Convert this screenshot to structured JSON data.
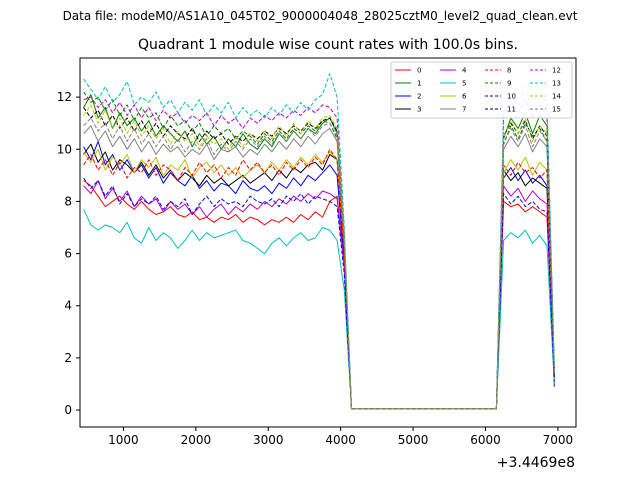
{
  "chart_data": {
    "type": "line",
    "suptitle": "Data file: modeM0/AS1A10_045T02_9000004048_28025cztM0_level2_quad_clean.evt",
    "title": "Quadrant 1 module wise count rates with 100.0s bins.",
    "xlabel": "",
    "ylabel": "",
    "x_offset_label": "+3.4469e8",
    "xlim": [
      400,
      7250
    ],
    "ylim": [
      -0.65,
      13.5
    ],
    "xticks": [
      1000,
      2000,
      3000,
      4000,
      5000,
      6000,
      7000
    ],
    "xtick_labels": [
      "1000",
      "2000",
      "3000",
      "4000",
      "5000",
      "6000",
      "7000"
    ],
    "yticks": [
      0,
      2,
      4,
      6,
      8,
      10,
      12
    ],
    "ytick_labels": [
      "0",
      "2",
      "4",
      "6",
      "8",
      "10",
      "12"
    ],
    "legend_position": "upper-right",
    "legend_columns": 4,
    "x": [
      450,
      550,
      650,
      750,
      850,
      950,
      1050,
      1150,
      1250,
      1350,
      1450,
      1550,
      1650,
      1750,
      1850,
      1950,
      2050,
      2150,
      2250,
      2350,
      2450,
      2550,
      2650,
      2750,
      2850,
      2950,
      3050,
      3150,
      3250,
      3350,
      3450,
      3550,
      3650,
      3750,
      3850,
      3950,
      4050,
      4150,
      6150,
      6250,
      6350,
      6450,
      6550,
      6650,
      6750,
      6850,
      6950
    ],
    "series": [
      {
        "name": "0",
        "color": "#ff0000",
        "dash": "solid",
        "values": [
          8.8,
          8.6,
          8.2,
          7.8,
          8.0,
          8.2,
          7.9,
          7.7,
          8.0,
          7.7,
          7.5,
          7.6,
          7.8,
          7.5,
          7.4,
          7.6,
          7.3,
          7.4,
          7.2,
          7.4,
          7.3,
          7.5,
          7.2,
          7.4,
          7.3,
          7.1,
          7.3,
          7.2,
          7.4,
          7.2,
          7.5,
          7.3,
          7.6,
          7.4,
          8.0,
          8.2,
          5.6,
          0.05,
          0.05,
          8.0,
          7.8,
          7.9,
          7.6,
          7.8,
          7.6,
          7.4,
          1.3
        ]
      },
      {
        "name": "1",
        "color": "#008000",
        "dash": "solid",
        "values": [
          11.6,
          12.1,
          11.2,
          11.6,
          10.8,
          11.4,
          10.9,
          11.2,
          10.7,
          11.1,
          10.5,
          10.9,
          10.6,
          10.3,
          10.7,
          10.1,
          10.6,
          10.2,
          10.5,
          10.0,
          10.4,
          10.1,
          10.6,
          10.2,
          10.0,
          10.4,
          10.1,
          10.6,
          10.3,
          10.7,
          10.4,
          10.8,
          10.6,
          11.0,
          11.2,
          10.6,
          6.4,
          0.05,
          0.05,
          10.4,
          11.2,
          10.8,
          11.4,
          10.6,
          11.3,
          10.9,
          1.6
        ]
      },
      {
        "name": "2",
        "color": "#0000ff",
        "dash": "solid",
        "values": [
          10.1,
          9.6,
          10.3,
          9.4,
          9.8,
          9.2,
          9.6,
          9.1,
          9.4,
          8.9,
          9.3,
          8.7,
          9.1,
          8.8,
          8.6,
          9.0,
          8.5,
          8.8,
          8.4,
          8.7,
          8.6,
          8.3,
          8.8,
          8.5,
          8.4,
          8.6,
          8.3,
          8.7,
          8.5,
          8.9,
          8.6,
          9.0,
          8.8,
          9.1,
          9.4,
          9.0,
          5.7,
          0.05,
          0.05,
          8.9,
          9.3,
          8.8,
          9.2,
          8.7,
          9.0,
          8.6,
          0.9
        ]
      },
      {
        "name": "3",
        "color": "#000000",
        "dash": "solid",
        "values": [
          9.8,
          10.2,
          9.5,
          9.9,
          9.2,
          9.6,
          9.4,
          9.1,
          9.5,
          9.0,
          9.4,
          8.9,
          9.2,
          8.8,
          9.1,
          8.9,
          8.6,
          9.0,
          8.7,
          8.9,
          8.6,
          8.8,
          9.0,
          8.7,
          8.9,
          9.1,
          8.8,
          9.2,
          8.9,
          9.3,
          9.1,
          9.4,
          9.5,
          9.2,
          9.8,
          9.6,
          6.0,
          0.05,
          0.05,
          9.2,
          8.8,
          9.1,
          8.6,
          8.9,
          8.7,
          8.5,
          1.1
        ]
      },
      {
        "name": "4",
        "color": "#bf00bf",
        "dash": "solid",
        "values": [
          8.6,
          8.3,
          8.8,
          8.1,
          8.5,
          8.0,
          8.4,
          7.8,
          8.2,
          7.9,
          8.1,
          7.6,
          8.0,
          7.7,
          7.9,
          7.5,
          7.8,
          7.4,
          7.7,
          7.9,
          7.5,
          7.8,
          7.6,
          7.9,
          7.7,
          8.0,
          7.8,
          8.1,
          7.9,
          8.2,
          8.0,
          8.3,
          8.1,
          8.4,
          8.3,
          8.1,
          5.5,
          0.05,
          0.05,
          8.6,
          8.2,
          8.5,
          8.0,
          8.4,
          8.1,
          7.9,
          1.2
        ]
      },
      {
        "name": "5",
        "color": "#00bfbf",
        "dash": "solid",
        "values": [
          7.7,
          7.1,
          6.9,
          7.1,
          7.0,
          6.8,
          7.2,
          6.6,
          6.4,
          7.0,
          6.5,
          6.8,
          6.6,
          6.2,
          6.5,
          6.9,
          6.5,
          6.8,
          6.6,
          6.7,
          6.8,
          6.9,
          6.5,
          6.4,
          6.2,
          6.0,
          6.4,
          6.6,
          6.3,
          6.6,
          6.8,
          6.5,
          6.6,
          7.0,
          6.9,
          6.5,
          4.6,
          0.05,
          0.05,
          6.5,
          6.8,
          6.6,
          6.9,
          6.4,
          6.7,
          6.3,
          1.0
        ]
      },
      {
        "name": "6",
        "color": "#bfbf00",
        "dash": "solid",
        "values": [
          9.9,
          9.5,
          10.0,
          9.2,
          9.7,
          9.4,
          9.8,
          9.1,
          9.6,
          9.3,
          9.7,
          9.0,
          9.4,
          9.2,
          9.6,
          8.9,
          9.3,
          9.5,
          9.1,
          9.4,
          9.0,
          9.3,
          8.9,
          9.2,
          9.4,
          9.1,
          9.5,
          9.2,
          9.6,
          9.3,
          9.7,
          9.4,
          9.8,
          9.5,
          9.9,
          9.6,
          6.1,
          0.05,
          0.05,
          9.1,
          9.6,
          9.2,
          9.7,
          9.0,
          9.5,
          9.2,
          1.2
        ]
      },
      {
        "name": "7",
        "color": "#808080",
        "dash": "solid",
        "values": [
          10.6,
          10.9,
          10.3,
          10.7,
          10.1,
          10.5,
          10.0,
          10.4,
          9.9,
          10.3,
          9.8,
          10.2,
          9.9,
          10.1,
          9.7,
          10.0,
          9.8,
          10.2,
          9.6,
          10.0,
          9.9,
          10.1,
          9.7,
          10.0,
          9.8,
          10.2,
          9.9,
          10.3,
          10.0,
          10.4,
          10.1,
          10.5,
          10.2,
          10.6,
          10.8,
          10.3,
          6.4,
          0.05,
          0.05,
          10.0,
          10.5,
          10.1,
          10.6,
          9.9,
          10.4,
          10.1,
          1.3
        ]
      },
      {
        "name": "8",
        "color": "#ff0000",
        "dash": "dashed",
        "values": [
          9.4,
          9.8,
          9.2,
          9.6,
          9.0,
          9.5,
          8.9,
          9.3,
          9.1,
          9.6,
          9.0,
          9.4,
          9.2,
          8.8,
          9.3,
          9.0,
          9.5,
          9.1,
          9.4,
          8.9,
          9.3,
          9.0,
          9.6,
          9.2,
          9.5,
          9.1,
          9.4,
          9.0,
          9.5,
          9.2,
          9.6,
          9.3,
          9.7,
          9.4,
          10.0,
          9.6,
          6.0,
          0.05,
          0.05,
          9.4,
          9.0,
          9.5,
          9.1,
          9.3,
          8.9,
          9.2,
          1.3
        ]
      },
      {
        "name": "9",
        "color": "#008000",
        "dash": "dashed",
        "values": [
          12.2,
          11.8,
          12.0,
          11.5,
          11.9,
          11.3,
          11.7,
          11.1,
          11.6,
          11.2,
          11.4,
          10.8,
          11.3,
          10.9,
          11.1,
          10.7,
          11.0,
          10.5,
          10.9,
          10.6,
          10.8,
          10.4,
          10.7,
          10.5,
          10.2,
          10.6,
          10.3,
          10.7,
          10.4,
          10.8,
          10.6,
          10.9,
          10.7,
          11.1,
          11.0,
          10.4,
          6.4,
          0.05,
          0.05,
          10.2,
          10.9,
          10.4,
          11.0,
          10.5,
          10.8,
          10.3,
          1.4
        ]
      },
      {
        "name": "10",
        "color": "#0000ff",
        "dash": "dashed",
        "values": [
          8.9,
          8.5,
          8.8,
          8.2,
          8.6,
          7.9,
          8.3,
          7.8,
          8.1,
          7.9,
          8.2,
          7.7,
          8.0,
          7.8,
          8.1,
          7.5,
          7.9,
          8.2,
          7.8,
          8.1,
          7.9,
          8.0,
          7.8,
          8.2,
          8.0,
          7.9,
          8.1,
          7.8,
          8.2,
          8.0,
          8.3,
          7.9,
          8.2,
          8.1,
          8.0,
          7.8,
          5.2,
          0.05,
          0.05,
          8.3,
          7.9,
          8.2,
          7.8,
          8.0,
          7.7,
          7.6,
          1.1
        ]
      },
      {
        "name": "11",
        "color": "#000000",
        "dash": "dashed",
        "values": [
          11.6,
          11.2,
          11.5,
          10.9,
          11.3,
          10.8,
          11.2,
          10.7,
          11.1,
          10.6,
          11.0,
          10.5,
          10.9,
          10.6,
          10.4,
          10.8,
          10.3,
          10.7,
          10.4,
          10.6,
          10.2,
          10.5,
          10.3,
          10.6,
          10.4,
          10.7,
          10.5,
          10.8,
          10.6,
          10.9,
          10.7,
          11.0,
          10.8,
          11.1,
          11.2,
          10.7,
          6.6,
          0.05,
          0.05,
          10.5,
          11.0,
          10.6,
          11.1,
          10.4,
          10.9,
          10.5,
          1.5
        ]
      },
      {
        "name": "12",
        "color": "#bf00bf",
        "dash": "dashed",
        "values": [
          11.9,
          12.0,
          11.6,
          11.9,
          11.4,
          11.8,
          11.3,
          11.7,
          11.2,
          11.6,
          11.1,
          11.5,
          11.2,
          11.4,
          11.0,
          11.3,
          11.1,
          11.4,
          10.9,
          11.3,
          11.0,
          11.2,
          10.8,
          11.2,
          11.0,
          11.3,
          11.1,
          11.4,
          11.2,
          11.5,
          11.3,
          11.6,
          11.4,
          11.7,
          11.6,
          11.2,
          6.8,
          0.05,
          0.05,
          11.3,
          11.8,
          11.4,
          11.9,
          11.2,
          11.7,
          11.3,
          1.6
        ]
      },
      {
        "name": "13",
        "color": "#00bfbf",
        "dash": "dashed",
        "values": [
          12.7,
          12.3,
          11.9,
          12.4,
          11.8,
          12.1,
          12.6,
          11.7,
          12.0,
          11.8,
          12.2,
          11.6,
          11.9,
          11.4,
          11.8,
          11.5,
          11.9,
          11.3,
          11.7,
          11.4,
          11.8,
          11.2,
          11.6,
          11.3,
          11.5,
          11.2,
          11.6,
          11.3,
          11.7,
          11.4,
          11.8,
          11.5,
          11.9,
          12.1,
          12.9,
          12.0,
          7.0,
          0.05,
          0.05,
          11.4,
          12.2,
          11.6,
          12.4,
          11.5,
          12.1,
          11.8,
          1.7
        ]
      },
      {
        "name": "14",
        "color": "#bfbf00",
        "dash": "dashed",
        "values": [
          11.3,
          11.7,
          11.0,
          11.5,
          10.8,
          11.2,
          10.6,
          11.1,
          10.5,
          10.9,
          10.4,
          10.8,
          10.2,
          10.7,
          10.3,
          10.6,
          10.1,
          10.5,
          10.2,
          10.4,
          10.0,
          10.5,
          10.1,
          10.6,
          10.3,
          10.7,
          10.4,
          10.9,
          10.5,
          11.0,
          10.6,
          11.1,
          10.8,
          11.2,
          11.3,
          10.8,
          6.6,
          0.05,
          0.05,
          10.4,
          11.1,
          10.6,
          11.2,
          10.3,
          10.9,
          10.6,
          1.5
        ]
      },
      {
        "name": "15",
        "color": "#808080",
        "dash": "dashed",
        "values": [
          10.9,
          11.2,
          10.7,
          11.0,
          10.4,
          10.9,
          10.3,
          10.8,
          10.2,
          10.6,
          10.1,
          10.5,
          10.0,
          10.4,
          9.9,
          10.3,
          10.0,
          10.4,
          9.8,
          10.2,
          9.9,
          10.3,
          10.0,
          10.4,
          10.1,
          10.5,
          10.2,
          10.6,
          10.3,
          10.7,
          10.4,
          10.8,
          10.5,
          10.9,
          11.0,
          10.5,
          6.5,
          0.05,
          0.05,
          10.2,
          10.8,
          10.3,
          10.9,
          10.1,
          10.7,
          10.3,
          1.4
        ]
      }
    ]
  }
}
